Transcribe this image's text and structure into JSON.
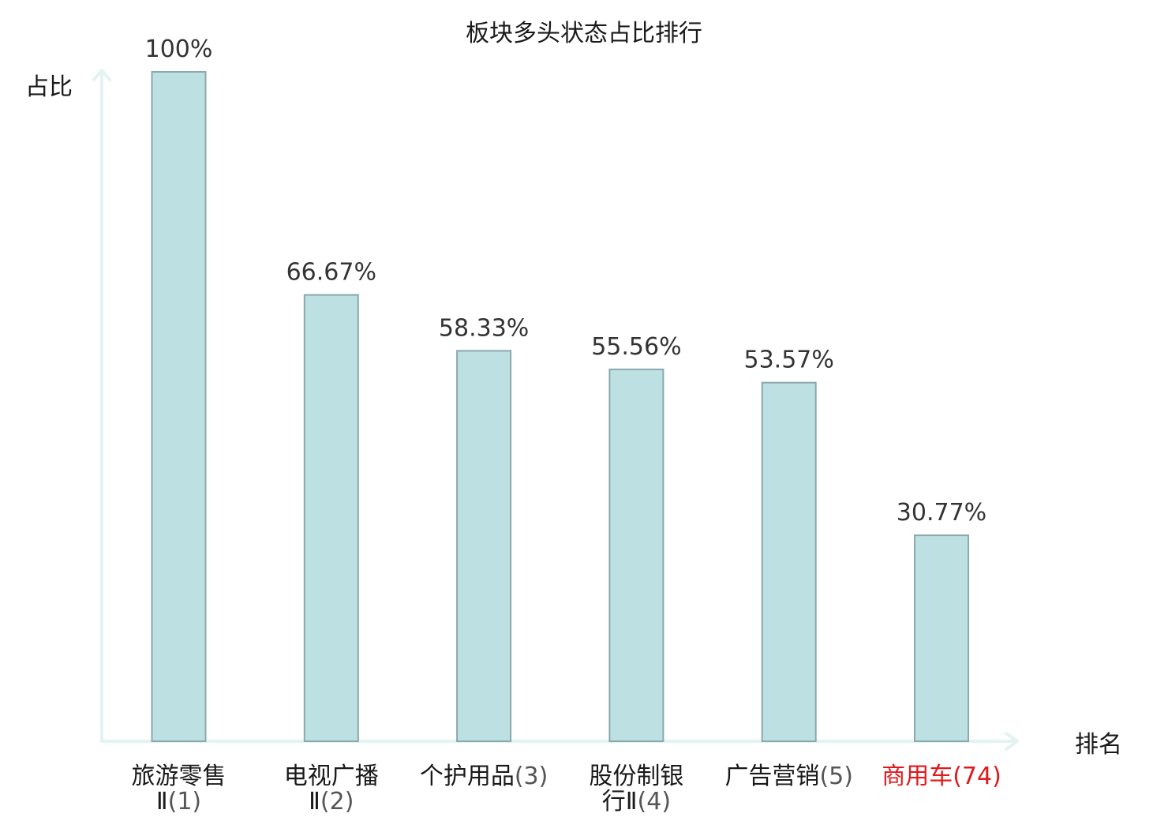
{
  "chart_data": {
    "type": "bar",
    "title": "板块多头状态占比排行",
    "xlabel": "排名",
    "ylabel": "占比",
    "ylim": [
      0,
      100
    ],
    "grid": false,
    "categories": [
      {
        "lines": [
          "旅游零售",
          "Ⅱ(1)"
        ],
        "name": "旅游零售Ⅱ",
        "rank": "(1)",
        "highlight": false
      },
      {
        "lines": [
          "电视广播",
          "Ⅱ(2)"
        ],
        "name": "电视广播Ⅱ",
        "rank": "(2)",
        "highlight": false
      },
      {
        "lines": [
          "个护用品(3)"
        ],
        "name": "个护用品",
        "rank": "(3)",
        "highlight": false
      },
      {
        "lines": [
          "股份制银",
          "行Ⅱ(4)"
        ],
        "name": "股份制银行Ⅱ",
        "rank": "(4)",
        "highlight": false
      },
      {
        "lines": [
          "广告营销(5)"
        ],
        "name": "广告营销",
        "rank": "(5)",
        "highlight": false
      },
      {
        "lines": [
          "商用车(74)"
        ],
        "name": "商用车",
        "rank": "(74)",
        "highlight": true
      }
    ],
    "values": [
      100,
      66.67,
      58.33,
      55.56,
      53.57,
      30.77
    ],
    "value_labels": [
      "100%",
      "66.67%",
      "58.33%",
      "55.56%",
      "53.57%",
      "30.77%"
    ],
    "colors": {
      "bar_fill": "#bde0e3",
      "bar_stroke": "#8aa9ad",
      "axis": "#e2f3f1",
      "highlight": "#e0191c"
    }
  }
}
